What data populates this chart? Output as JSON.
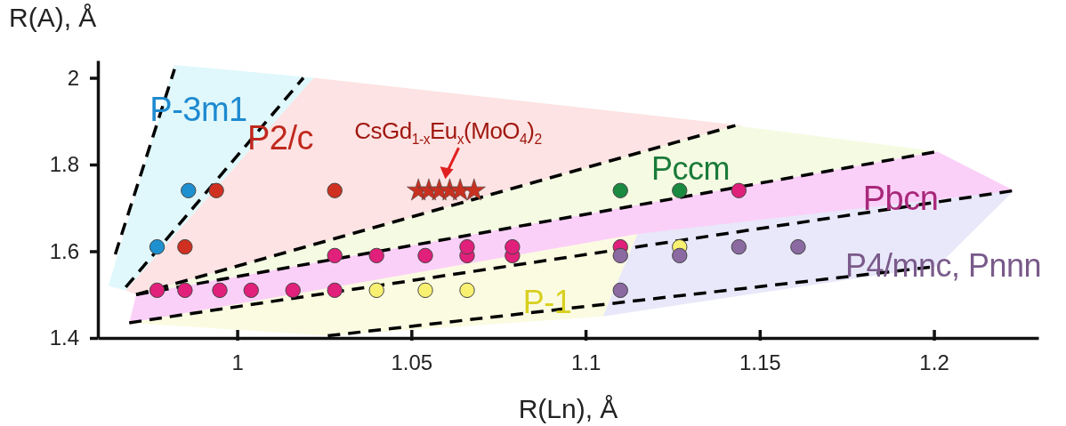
{
  "chart_data": {
    "type": "scatter",
    "xlabel": "R(Ln), Å",
    "ylabel": "R(A), Å",
    "xlim": [
      0.96,
      1.23
    ],
    "xticks": [
      1,
      1.05,
      1.1,
      1.15,
      1.2
    ],
    "ylim": [
      1.4,
      2.04
    ],
    "yticks": [
      1.4,
      1.6,
      1.8,
      2
    ],
    "grid": false,
    "marker": "circle",
    "series": [
      {
        "type": "line",
        "color": "#000000",
        "line_style": "dashed",
        "marker": "none",
        "x": [
          0.965,
          0.982
        ],
        "values": [
          1.593,
          2.02
        ]
      },
      {
        "type": "line",
        "color": "#000000",
        "line_style": "dashed",
        "marker": "none",
        "x": [
          0.968,
          1.019
        ],
        "values": [
          1.517,
          2.0
        ]
      },
      {
        "type": "line",
        "color": "#000000",
        "line_style": "dashed",
        "marker": "none",
        "x": [
          0.971,
          1.143
        ],
        "values": [
          1.5,
          1.89
        ]
      },
      {
        "type": "line",
        "color": "#000000",
        "line_style": "dashed",
        "marker": "none",
        "x": [
          0.971,
          1.201
        ],
        "values": [
          1.5,
          1.83
        ]
      },
      {
        "type": "line",
        "color": "#000000",
        "line_style": "dashed",
        "marker": "none",
        "x": [
          0.969,
          1.223
        ],
        "values": [
          1.435,
          1.74
        ]
      },
      {
        "type": "line",
        "color": "#000000",
        "line_style": "dashed",
        "marker": "none",
        "x": [
          1.026,
          1.201
        ],
        "values": [
          1.405,
          1.565
        ]
      },
      {
        "color": "#1e90d0",
        "x": [
          0.986,
          0.977
        ],
        "values": [
          1.74,
          1.61
        ]
      },
      {
        "color": "#d03020",
        "x": [
          0.994,
          1.028,
          0.985
        ],
        "values": [
          1.74,
          1.74,
          1.61
        ]
      },
      {
        "color": "#c83020",
        "marker": "star",
        "x": [
          1.052,
          1.055,
          1.058,
          1.061,
          1.064,
          1.068
        ],
        "values": [
          1.74,
          1.74,
          1.74,
          1.74,
          1.74,
          1.74
        ]
      },
      {
        "color": "#1a8a40",
        "x": [
          1.11,
          1.127
        ],
        "values": [
          1.74,
          1.74
        ]
      },
      {
        "color": "#e0207a",
        "x": [
          1.144,
          0.977,
          0.985,
          0.995,
          1.004,
          1.016,
          1.028,
          1.028,
          1.04,
          1.054,
          1.066,
          1.066,
          1.079,
          1.079,
          1.11
        ],
        "values": [
          1.74,
          1.51,
          1.51,
          1.51,
          1.51,
          1.51,
          1.51,
          1.59,
          1.59,
          1.59,
          1.59,
          1.61,
          1.59,
          1.61,
          1.61
        ]
      },
      {
        "color": "#f8f070",
        "x": [
          1.04,
          1.054,
          1.066,
          1.127
        ],
        "values": [
          1.51,
          1.51,
          1.51,
          1.61
        ]
      },
      {
        "color": "#8a6aa0",
        "x": [
          1.11,
          1.127,
          1.144,
          1.161,
          1.11
        ],
        "values": [
          1.59,
          1.59,
          1.61,
          1.61,
          1.51
        ]
      }
    ],
    "annotations": [
      "P-3m1",
      "P2/c",
      {
        "text": "CsGd$_{1-x}$Eu$_{x}$(MoO$_{4}$)$_{2}$",
        "x": 1.06,
        "y": 1.74
      },
      "Pccm",
      "Pbcn",
      "P4/mnc, Pnnn",
      "P-1"
    ]
  }
}
